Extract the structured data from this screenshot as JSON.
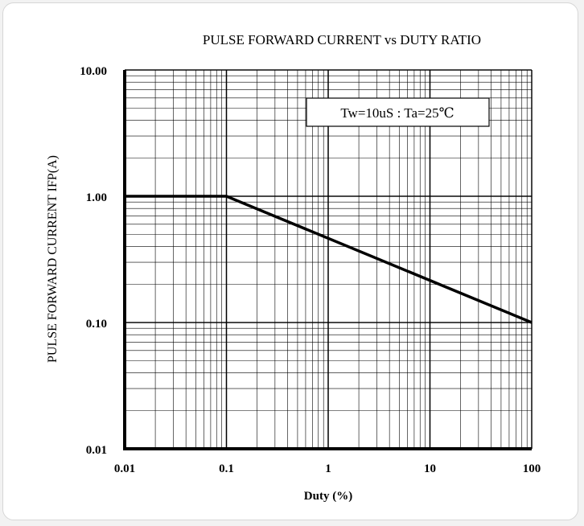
{
  "chart_data": {
    "type": "line",
    "title": "PULSE FORWARD CURRENT vs DUTY  RATIO",
    "xlabel": "Duty  (%)",
    "ylabel": "PULSE FORWARD CURRENT IFP(A)",
    "x_scale": "log",
    "y_scale": "log",
    "xlim": [
      0.01,
      100
    ],
    "ylim": [
      0.01,
      10
    ],
    "x_ticks": [
      "0.01",
      "0.1",
      "1",
      "10",
      "100"
    ],
    "y_ticks": [
      "10.00",
      "1.00",
      "0.10",
      "0.01"
    ],
    "grid": true,
    "annotation": "Tw=10uS : Ta=25℃",
    "series": [
      {
        "x": [
          0.01,
          0.1,
          100
        ],
        "y": [
          1.0,
          1.0,
          0.1
        ]
      }
    ]
  },
  "colors": {
    "line": "#000000",
    "grid": "#000000",
    "background": "#ffffff"
  }
}
